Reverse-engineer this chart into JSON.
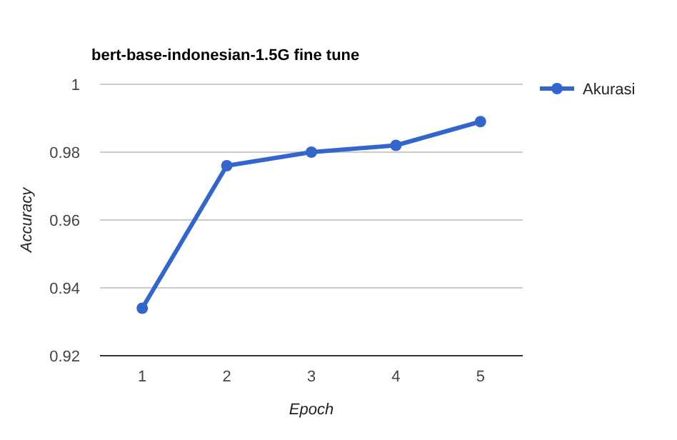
{
  "chart_data": {
    "type": "line",
    "title": "bert-base-indonesian-1.5G fine tune",
    "xlabel": "Epoch",
    "ylabel": "Accuracy",
    "categories": [
      "1",
      "2",
      "3",
      "4",
      "5"
    ],
    "series": [
      {
        "name": "Akurasi",
        "color": "#3366cc",
        "values": [
          0.934,
          0.976,
          0.98,
          0.982,
          0.989
        ]
      }
    ],
    "ylim": [
      0.92,
      1
    ],
    "yticks": [
      0.92,
      0.94,
      0.96,
      0.98,
      {
        "value": 1,
        "label": "1"
      }
    ],
    "grid": "y",
    "legend": "right",
    "marker": "circle",
    "line_style": "solid"
  }
}
